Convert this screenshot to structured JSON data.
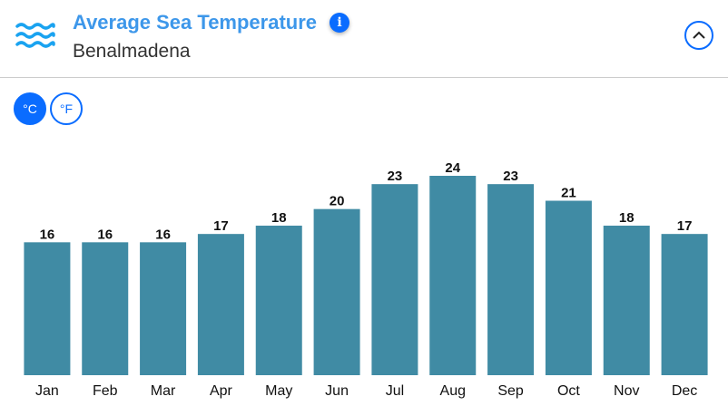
{
  "header": {
    "icon": "waves-icon",
    "title": "Average Sea Temperature",
    "subtitle": "Benalmadena",
    "info_icon": "i",
    "collapse_icon": "chevron-up-icon"
  },
  "units": {
    "celsius": "°C",
    "fahrenheit": "°F",
    "selected": "celsius"
  },
  "colors": {
    "accent": "#0a6cff",
    "title": "#3d97ea",
    "bar": "#408ba4"
  },
  "chart_data": {
    "type": "bar",
    "categories": [
      "Jan",
      "Feb",
      "Mar",
      "Apr",
      "May",
      "Jun",
      "Jul",
      "Aug",
      "Sep",
      "Oct",
      "Nov",
      "Dec"
    ],
    "values": [
      16,
      16,
      16,
      17,
      18,
      20,
      23,
      24,
      23,
      21,
      18,
      17
    ],
    "ylim": [
      0,
      24
    ],
    "grid": false,
    "unit": "°C"
  }
}
